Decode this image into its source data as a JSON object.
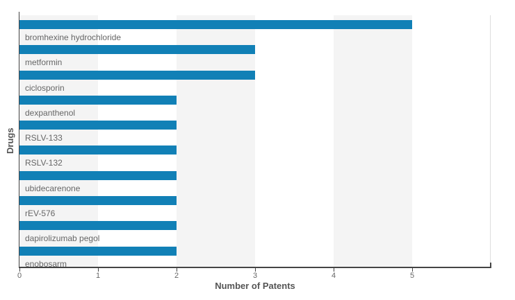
{
  "chart_data": {
    "type": "bar",
    "orientation": "horizontal",
    "title": "",
    "xlabel": "Number of Patents",
    "ylabel": "Drugs",
    "categories": [
      "bromhexine hydrochloride",
      "metformin",
      "ciclosporin",
      "dexpanthenol",
      "RSLV-133",
      "RSLV-132",
      "ubidecarenone",
      "rEV-576",
      "dapirolizumab pegol",
      "enobosarm"
    ],
    "values": [
      5,
      3,
      3,
      2,
      2,
      2,
      2,
      2,
      2,
      2
    ],
    "xlim": [
      0,
      6
    ],
    "xticks": [
      "0",
      "1",
      "2",
      "3",
      "4",
      "5"
    ],
    "legend": "none",
    "grid": "alternating-vertical-bands",
    "colors": {
      "bar": "#1180b6",
      "band": "#f4f4f4",
      "axis": "#444444",
      "tick_label": "#666666",
      "axis_title": "#555555",
      "category_label": "#666666",
      "plot_right_border": "#dddddd"
    }
  }
}
